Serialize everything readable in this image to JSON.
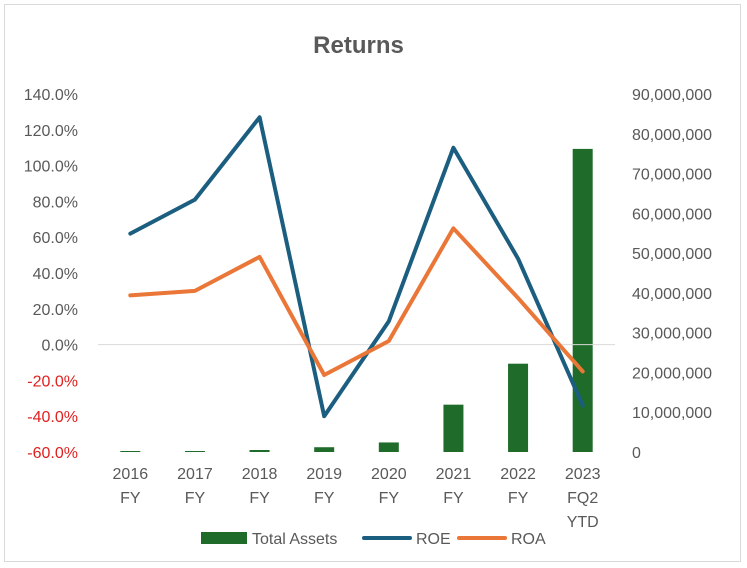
{
  "chart_data": {
    "type": "bar",
    "title": "Returns",
    "categories": [
      [
        "2016",
        "FY"
      ],
      [
        "2017",
        "FY"
      ],
      [
        "2018",
        "FY"
      ],
      [
        "2019",
        "FY"
      ],
      [
        "2020",
        "FY"
      ],
      [
        "2021",
        "FY"
      ],
      [
        "2022",
        "FY"
      ],
      [
        "2023",
        "FQ2",
        "YTD"
      ]
    ],
    "series": [
      {
        "name": "Total Assets",
        "type": "bar",
        "axis": "right",
        "color": "#1e6b2a",
        "values": [
          100000,
          200000,
          500000,
          1200000,
          2400000,
          11900000,
          22200000,
          76200000
        ]
      },
      {
        "name": "ROE",
        "type": "line",
        "axis": "left",
        "color": "#1b5e80",
        "values": [
          62,
          81,
          127,
          -40,
          13,
          110,
          48,
          -34
        ]
      },
      {
        "name": "ROA",
        "type": "line",
        "axis": "left",
        "color": "#ea7637",
        "values": [
          27.5,
          30,
          49,
          -17,
          2,
          65,
          26,
          -15
        ]
      }
    ],
    "left_axis": {
      "min": -60,
      "max": 140,
      "step": 20,
      "ticks": [
        "-60.0%",
        "-40.0%",
        "-20.0%",
        "0.0%",
        "20.0%",
        "40.0%",
        "60.0%",
        "80.0%",
        "100.0%",
        "120.0%",
        "140.0%"
      ],
      "negative_color": "#e0201f",
      "positive_color": "#595959"
    },
    "right_axis": {
      "min": 0,
      "max": 90000000,
      "step": 10000000,
      "ticks": [
        "0",
        "10,000,000",
        "20,000,000",
        "30,000,000",
        "40,000,000",
        "50,000,000",
        "60,000,000",
        "70,000,000",
        "80,000,000",
        "90,000,000"
      ],
      "color": "#595959"
    },
    "legend": {
      "position": "bottom",
      "entries": [
        "Total Assets",
        "ROE",
        "ROA"
      ]
    },
    "grid": false
  }
}
